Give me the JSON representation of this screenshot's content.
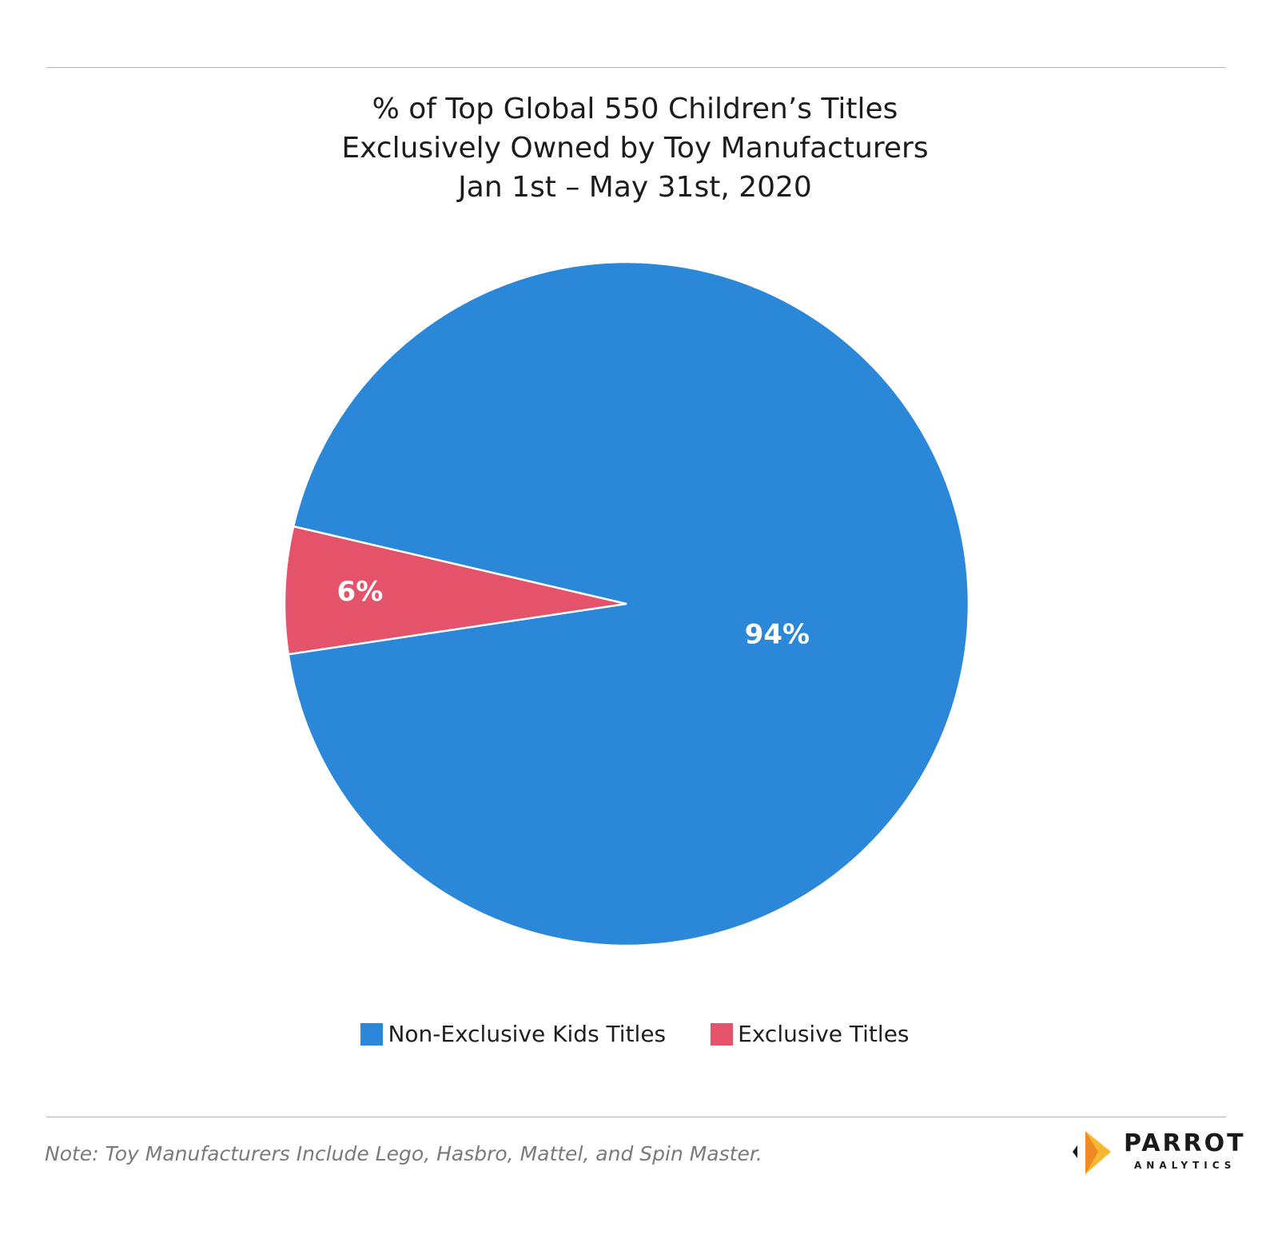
{
  "title_lines": [
    "% of Top Global 550 Children’s Titles",
    "Exclusively Owned by Toy Manufacturers",
    "Jan 1st – May 31st, 2020"
  ],
  "chart_data": {
    "type": "pie",
    "title": "% of Top Global 550 Children’s Titles Exclusively Owned by Toy Manufacturers Jan 1st – May 31st, 2020",
    "slices": [
      {
        "name": "Non-Exclusive Kids Titles",
        "value": 94,
        "label": "94%",
        "color": "#2b87d8"
      },
      {
        "name": "Exclusive Titles",
        "value": 6,
        "label": "6%",
        "color": "#e5536a"
      }
    ],
    "legend_position": "bottom"
  },
  "note": "Note: Toy Manufacturers Include Lego, Hasbro, Mattel, and Spin Master.",
  "logo": {
    "brand": "PARROT",
    "sub": "ANALYTICS",
    "icon": "parrot-analytics-logo-icon"
  }
}
